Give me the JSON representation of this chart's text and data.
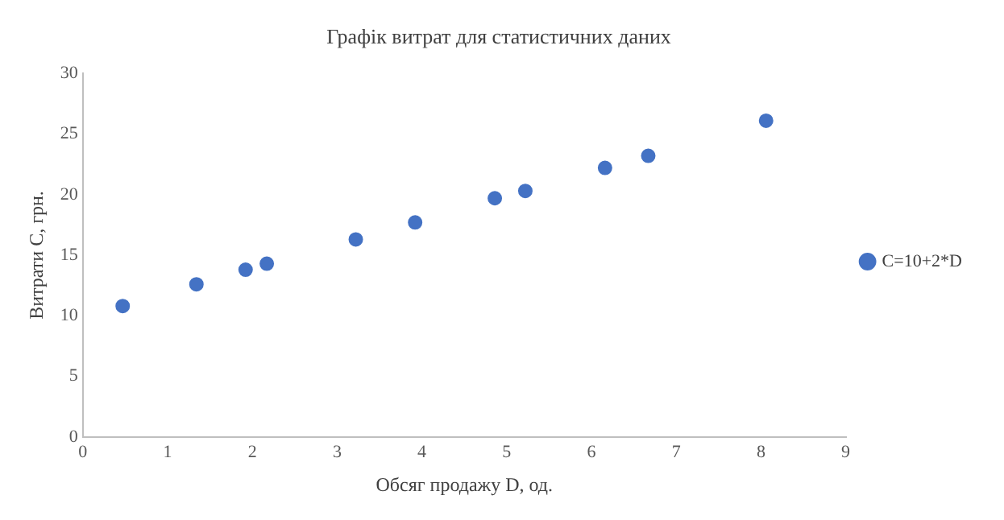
{
  "chart_data": {
    "type": "scatter",
    "title": "Графік витрат для статистичних даних",
    "xlabel": "Обсяг продажу D, од.",
    "ylabel": "Витрати C, грн.",
    "series": [
      {
        "name": "C=10+2*D",
        "color": "#4472c4",
        "x": [
          0.47,
          1.34,
          1.92,
          2.17,
          3.22,
          3.92,
          4.86,
          5.22,
          6.16,
          6.67,
          8.06
        ],
        "values": [
          10.8,
          12.6,
          13.8,
          14.3,
          16.3,
          17.7,
          19.7,
          20.3,
          22.2,
          23.2,
          26.1
        ]
      }
    ],
    "xlim": [
      0,
      9
    ],
    "xticks": [
      0,
      1,
      2,
      3,
      4,
      5,
      6,
      7,
      8,
      9
    ],
    "ylim": [
      0,
      30
    ],
    "yticks": [
      0,
      5,
      10,
      15,
      20,
      25,
      30
    ],
    "grid": false,
    "legend": "right",
    "marker": "circle"
  }
}
